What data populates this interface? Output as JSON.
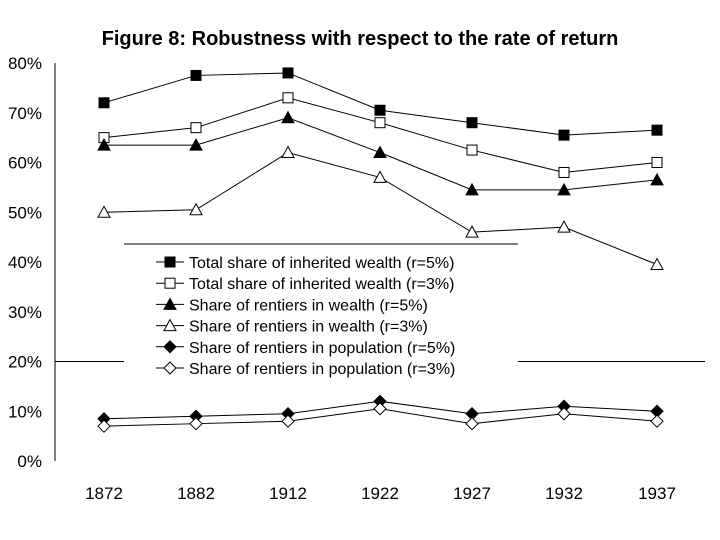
{
  "chart_data": {
    "type": "line",
    "title": "Figure 8: Robustness with respect to the rate of return",
    "categories": [
      "1872",
      "1882",
      "1912",
      "1922",
      "1927",
      "1932",
      "1937"
    ],
    "y_ticks": [
      "0%",
      "10%",
      "20%",
      "30%",
      "40%",
      "50%",
      "60%",
      "70%",
      "80%"
    ],
    "ylim": [
      0,
      80
    ],
    "legend_placement": "center",
    "series": [
      {
        "name": "Total share of inherited wealth (r=5%)",
        "marker": "square-filled",
        "values": [
          72,
          77.5,
          78,
          70.5,
          68,
          65.5,
          66.5
        ]
      },
      {
        "name": "Total share of inherited wealth (r=3%)",
        "marker": "square-open",
        "values": [
          65,
          67,
          73,
          68,
          62.5,
          58,
          60
        ]
      },
      {
        "name": "Share of rentiers in wealth (r=5%)",
        "marker": "triangle-filled",
        "values": [
          63.5,
          63.5,
          69,
          62,
          54.5,
          54.5,
          56.5
        ]
      },
      {
        "name": "Share of rentiers in wealth (r=3%)",
        "marker": "triangle-open",
        "values": [
          50,
          50.5,
          62,
          57,
          46,
          47,
          39.5
        ]
      },
      {
        "name": "Share of rentiers in population (r=5%)",
        "marker": "diamond-filled",
        "values": [
          8.5,
          9,
          9.5,
          12,
          9.5,
          11,
          10
        ]
      },
      {
        "name": "Share of rentiers in population (r=3%)",
        "marker": "diamond-open",
        "values": [
          7,
          7.5,
          8,
          10.5,
          7.5,
          9.5,
          8
        ]
      }
    ]
  }
}
